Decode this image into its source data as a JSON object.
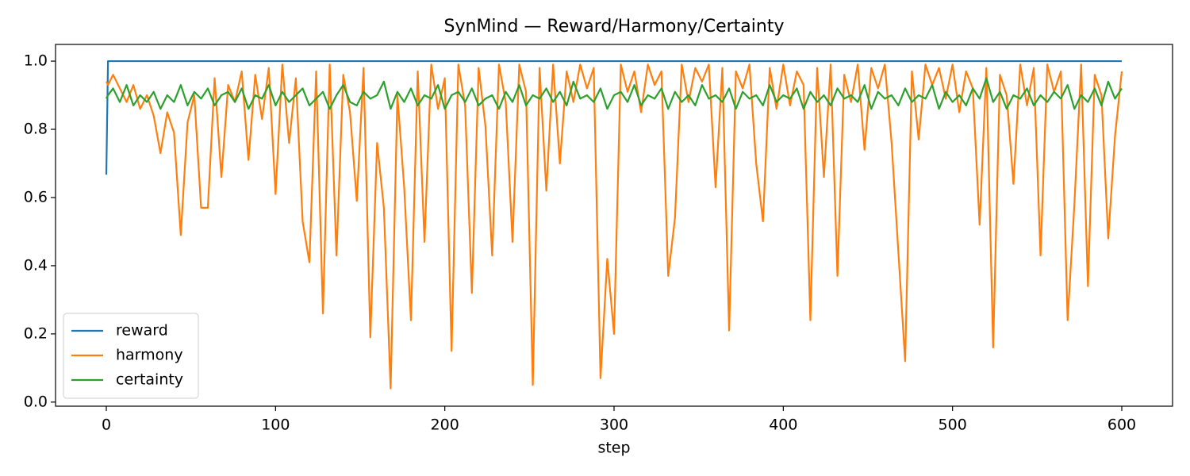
{
  "chart_data": {
    "type": "line",
    "title": "SynMind — Reward/Harmony/Certainty",
    "x_label": "step",
    "x": [
      0,
      1,
      4,
      8,
      12,
      16,
      20,
      24,
      28,
      32,
      36,
      40,
      44,
      48,
      52,
      56,
      60,
      64,
      68,
      72,
      76,
      80,
      84,
      88,
      92,
      96,
      100,
      104,
      108,
      112,
      116,
      120,
      124,
      128,
      132,
      136,
      140,
      144,
      148,
      152,
      156,
      160,
      164,
      168,
      172,
      176,
      180,
      184,
      188,
      192,
      196,
      200,
      204,
      208,
      212,
      216,
      220,
      224,
      228,
      232,
      236,
      240,
      244,
      248,
      252,
      256,
      260,
      264,
      268,
      272,
      276,
      280,
      284,
      288,
      292,
      296,
      300,
      304,
      308,
      312,
      316,
      320,
      324,
      328,
      332,
      336,
      340,
      344,
      348,
      352,
      356,
      360,
      364,
      368,
      372,
      376,
      380,
      384,
      388,
      392,
      396,
      400,
      404,
      408,
      412,
      416,
      420,
      424,
      428,
      432,
      436,
      440,
      444,
      448,
      452,
      456,
      460,
      464,
      468,
      472,
      476,
      480,
      484,
      488,
      492,
      496,
      500,
      504,
      508,
      512,
      516,
      520,
      524,
      528,
      532,
      536,
      540,
      544,
      548,
      552,
      556,
      560,
      564,
      568,
      572,
      576,
      580,
      584,
      588,
      592,
      596,
      600
    ],
    "series": [
      {
        "name": "reward",
        "color": "#1f77b4",
        "values": [
          0.667,
          1,
          1,
          1,
          1,
          1,
          1,
          1,
          1,
          1,
          1,
          1,
          1,
          1,
          1,
          1,
          1,
          1,
          1,
          1,
          1,
          1,
          1,
          1,
          1,
          1,
          1,
          1,
          1,
          1,
          1,
          1,
          1,
          1,
          1,
          1,
          1,
          1,
          1,
          1,
          1,
          1,
          1,
          1,
          1,
          1,
          1,
          1,
          1,
          1,
          1,
          1,
          1,
          1,
          1,
          1,
          1,
          1,
          1,
          1,
          1,
          1,
          1,
          1,
          1,
          1,
          1,
          1,
          1,
          1,
          1,
          1,
          1,
          1,
          1,
          1,
          1,
          1,
          1,
          1,
          1,
          1,
          1,
          1,
          1,
          1,
          1,
          1,
          1,
          1,
          1,
          1,
          1,
          1,
          1,
          1,
          1,
          1,
          1,
          1,
          1,
          1,
          1,
          1,
          1,
          1,
          1,
          1,
          1,
          1,
          1,
          1,
          1,
          1,
          1,
          1,
          1,
          1,
          1,
          1,
          1,
          1,
          1,
          1,
          1,
          1,
          1,
          1,
          1,
          1,
          1,
          1,
          1,
          1,
          1,
          1,
          1,
          1,
          1,
          1,
          1,
          1,
          1,
          1,
          1,
          1,
          1,
          1,
          1,
          1,
          1,
          1
        ]
      },
      {
        "name": "harmony",
        "color": "#ff7f0e",
        "values": [
          0.94,
          0.93,
          0.96,
          0.92,
          0.88,
          0.93,
          0.86,
          0.9,
          0.84,
          0.73,
          0.85,
          0.79,
          0.49,
          0.82,
          0.9,
          0.57,
          0.57,
          0.95,
          0.66,
          0.93,
          0.88,
          0.97,
          0.71,
          0.96,
          0.83,
          0.98,
          0.61,
          0.99,
          0.76,
          0.95,
          0.53,
          0.41,
          0.97,
          0.26,
          0.99,
          0.43,
          0.96,
          0.85,
          0.59,
          0.98,
          0.19,
          0.76,
          0.57,
          0.04,
          0.9,
          0.63,
          0.24,
          0.97,
          0.47,
          0.99,
          0.86,
          0.95,
          0.15,
          0.99,
          0.87,
          0.32,
          0.98,
          0.81,
          0.43,
          0.99,
          0.88,
          0.47,
          0.99,
          0.91,
          0.05,
          0.98,
          0.62,
          0.99,
          0.7,
          0.97,
          0.88,
          0.99,
          0.92,
          0.98,
          0.07,
          0.42,
          0.2,
          0.99,
          0.91,
          0.97,
          0.85,
          0.99,
          0.93,
          0.97,
          0.37,
          0.54,
          0.99,
          0.88,
          0.98,
          0.94,
          0.99,
          0.63,
          0.98,
          0.21,
          0.97,
          0.92,
          0.99,
          0.7,
          0.53,
          0.98,
          0.86,
          0.99,
          0.87,
          0.97,
          0.93,
          0.24,
          0.98,
          0.66,
          0.99,
          0.37,
          0.96,
          0.88,
          0.99,
          0.74,
          0.98,
          0.92,
          0.99,
          0.76,
          0.44,
          0.12,
          0.97,
          0.77,
          0.99,
          0.93,
          0.98,
          0.89,
          0.99,
          0.85,
          0.97,
          0.92,
          0.52,
          0.98,
          0.16,
          0.96,
          0.9,
          0.64,
          0.99,
          0.87,
          0.98,
          0.43,
          0.99,
          0.91,
          0.97,
          0.24,
          0.58,
          0.99,
          0.34,
          0.96,
          0.9,
          0.48,
          0.78,
          0.97
        ]
      },
      {
        "name": "certainty",
        "color": "#2ca02c",
        "values": [
          0.89,
          0.9,
          0.92,
          0.88,
          0.93,
          0.87,
          0.9,
          0.88,
          0.91,
          0.86,
          0.9,
          0.88,
          0.93,
          0.87,
          0.91,
          0.89,
          0.92,
          0.87,
          0.9,
          0.91,
          0.88,
          0.92,
          0.86,
          0.9,
          0.89,
          0.93,
          0.87,
          0.91,
          0.88,
          0.9,
          0.92,
          0.87,
          0.89,
          0.91,
          0.86,
          0.9,
          0.93,
          0.88,
          0.87,
          0.91,
          0.89,
          0.9,
          0.94,
          0.86,
          0.91,
          0.88,
          0.92,
          0.87,
          0.9,
          0.89,
          0.93,
          0.86,
          0.9,
          0.91,
          0.88,
          0.92,
          0.87,
          0.89,
          0.9,
          0.86,
          0.91,
          0.88,
          0.93,
          0.87,
          0.9,
          0.89,
          0.92,
          0.88,
          0.91,
          0.87,
          0.94,
          0.89,
          0.9,
          0.88,
          0.92,
          0.86,
          0.9,
          0.91,
          0.88,
          0.93,
          0.87,
          0.9,
          0.89,
          0.92,
          0.86,
          0.91,
          0.88,
          0.9,
          0.87,
          0.93,
          0.89,
          0.9,
          0.88,
          0.92,
          0.86,
          0.91,
          0.89,
          0.9,
          0.87,
          0.93,
          0.88,
          0.9,
          0.89,
          0.92,
          0.86,
          0.91,
          0.88,
          0.9,
          0.87,
          0.92,
          0.89,
          0.9,
          0.88,
          0.93,
          0.86,
          0.91,
          0.89,
          0.9,
          0.87,
          0.92,
          0.88,
          0.9,
          0.89,
          0.93,
          0.86,
          0.91,
          0.88,
          0.9,
          0.87,
          0.92,
          0.89,
          0.95,
          0.88,
          0.91,
          0.86,
          0.9,
          0.89,
          0.92,
          0.87,
          0.9,
          0.88,
          0.91,
          0.89,
          0.93,
          0.86,
          0.9,
          0.88,
          0.92,
          0.87,
          0.94,
          0.89,
          0.92
        ]
      }
    ],
    "xlim": [
      -30,
      630
    ],
    "ylim": [
      -0.012,
      1.049
    ],
    "xticks": [
      0,
      100,
      200,
      300,
      400,
      500,
      600
    ],
    "yticks": [
      {
        "value": 0,
        "label": "0.0"
      },
      0.2,
      0.4,
      0.6,
      0.8,
      {
        "value": 1,
        "label": "1.0"
      }
    ],
    "legend": "lower left"
  }
}
